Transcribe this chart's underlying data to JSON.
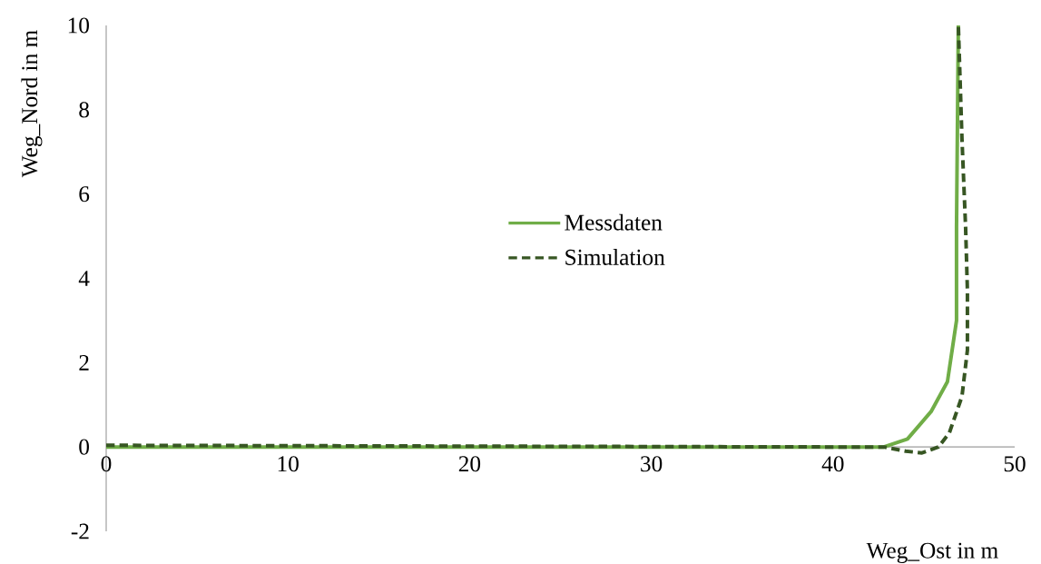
{
  "chart_data": {
    "type": "line",
    "xlabel": "Weg_Ost in m",
    "ylabel": "Weg_Nord in m",
    "xlim": [
      0,
      50
    ],
    "ylim": [
      -2,
      10
    ],
    "xticks": [
      0,
      10,
      20,
      30,
      40,
      50
    ],
    "yticks": [
      -2,
      0,
      2,
      4,
      6,
      8,
      10
    ],
    "grid": false,
    "legend": "center",
    "marker": "none",
    "series": [
      {
        "name": "Messdaten",
        "color": "#70ad47",
        "line_style": "solid",
        "x": [
          0,
          10,
          20,
          30,
          40,
          42.8,
          44.1,
          45.4,
          46.3,
          46.8,
          46.8,
          46.9
        ],
        "values": [
          0,
          0,
          0,
          0,
          0,
          0,
          0.19,
          0.84,
          1.55,
          3.0,
          5.2,
          10
        ]
      },
      {
        "name": "Simulation",
        "color": "#375623",
        "line_style": "dashed",
        "x": [
          0,
          10,
          20,
          30,
          40,
          42.8,
          44.0,
          44.9,
          45.8,
          46.4,
          47.1,
          47.4,
          47.4,
          47.3,
          47.1,
          46.9
        ],
        "values": [
          0.04,
          0.03,
          0.02,
          0.01,
          0,
          0,
          -0.1,
          -0.14,
          0,
          0.33,
          1.2,
          2.3,
          3.7,
          5.2,
          7.3,
          10
        ]
      }
    ]
  }
}
